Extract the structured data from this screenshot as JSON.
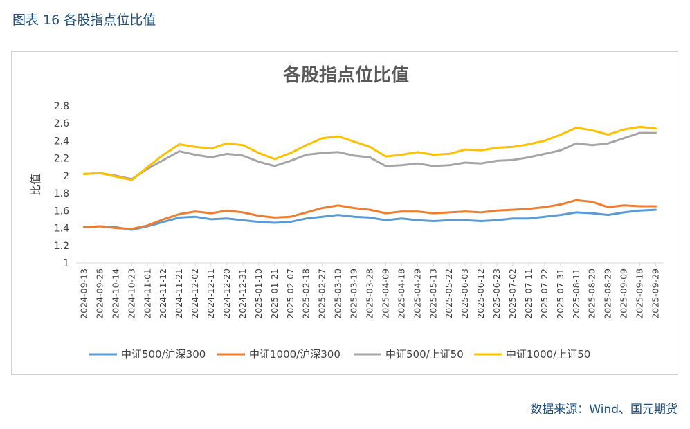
{
  "caption": "图表 16 各股指点位比值",
  "source": "数据来源：Wind、国元期货",
  "chart_data": {
    "type": "line",
    "title": "各股指点位比值",
    "xlabel": "",
    "ylabel": "比值",
    "ylim": [
      1,
      2.8
    ],
    "y_ticks": [
      "1",
      "1.2",
      "1.4",
      "1.6",
      "1.8",
      "2",
      "2.2",
      "2.4",
      "2.6",
      "2.8"
    ],
    "x_tick_labels": [
      "2024-09-13",
      "2024-09-26",
      "2024-10-14",
      "2024-10-23",
      "2024-11-01",
      "2024-11-12",
      "2024-11-21",
      "2024-12-02",
      "2024-12-11",
      "2024-12-20",
      "2024-12-31",
      "2025-01-10",
      "2025-01-21",
      "2025-02-07",
      "2025-02-18",
      "2025-02-27",
      "2025-03-10",
      "2025-03-19",
      "2025-03-28",
      "2025-04-09",
      "2025-04-18",
      "2025-04-29",
      "2025-05-13",
      "2025-05-22",
      "2025-06-03",
      "2025-06-12",
      "2025-06-23",
      "2025-07-02",
      "2025-07-11",
      "2025-07-22",
      "2025-07-31",
      "2025-08-11",
      "2025-08-20",
      "2025-08-29",
      "2025-09-09",
      "2025-09-18",
      "2025-09-29"
    ],
    "series": [
      {
        "name": "中证500/沪深300",
        "color": "#5b9bd5",
        "values": [
          1.41,
          1.42,
          1.41,
          1.38,
          1.42,
          1.47,
          1.52,
          1.53,
          1.5,
          1.51,
          1.49,
          1.47,
          1.46,
          1.47,
          1.51,
          1.53,
          1.55,
          1.53,
          1.52,
          1.49,
          1.51,
          1.49,
          1.48,
          1.49,
          1.49,
          1.48,
          1.49,
          1.51,
          1.51,
          1.53,
          1.55,
          1.58,
          1.57,
          1.55,
          1.58,
          1.6,
          1.61
        ]
      },
      {
        "name": "中证1000/沪深300",
        "color": "#ed7d31",
        "values": [
          1.41,
          1.42,
          1.4,
          1.39,
          1.43,
          1.5,
          1.56,
          1.59,
          1.57,
          1.6,
          1.58,
          1.54,
          1.52,
          1.53,
          1.58,
          1.63,
          1.66,
          1.63,
          1.61,
          1.57,
          1.59,
          1.59,
          1.57,
          1.58,
          1.59,
          1.58,
          1.6,
          1.61,
          1.62,
          1.64,
          1.67,
          1.72,
          1.7,
          1.64,
          1.66,
          1.65,
          1.65
        ]
      },
      {
        "name": "中证500/上证50",
        "color": "#a5a5a5",
        "values": [
          2.02,
          2.03,
          2.0,
          1.96,
          2.08,
          2.18,
          2.28,
          2.24,
          2.21,
          2.25,
          2.23,
          2.16,
          2.11,
          2.17,
          2.24,
          2.26,
          2.27,
          2.23,
          2.21,
          2.11,
          2.12,
          2.14,
          2.11,
          2.12,
          2.15,
          2.14,
          2.17,
          2.18,
          2.21,
          2.25,
          2.29,
          2.37,
          2.35,
          2.37,
          2.43,
          2.49,
          2.49
        ]
      },
      {
        "name": "中证1000/上证50",
        "color": "#ffc000",
        "values": [
          2.02,
          2.03,
          1.99,
          1.95,
          2.1,
          2.24,
          2.36,
          2.33,
          2.31,
          2.37,
          2.35,
          2.26,
          2.19,
          2.26,
          2.35,
          2.43,
          2.45,
          2.39,
          2.33,
          2.22,
          2.24,
          2.27,
          2.24,
          2.25,
          2.3,
          2.29,
          2.32,
          2.33,
          2.36,
          2.4,
          2.47,
          2.55,
          2.52,
          2.47,
          2.53,
          2.56,
          2.54
        ]
      }
    ]
  }
}
